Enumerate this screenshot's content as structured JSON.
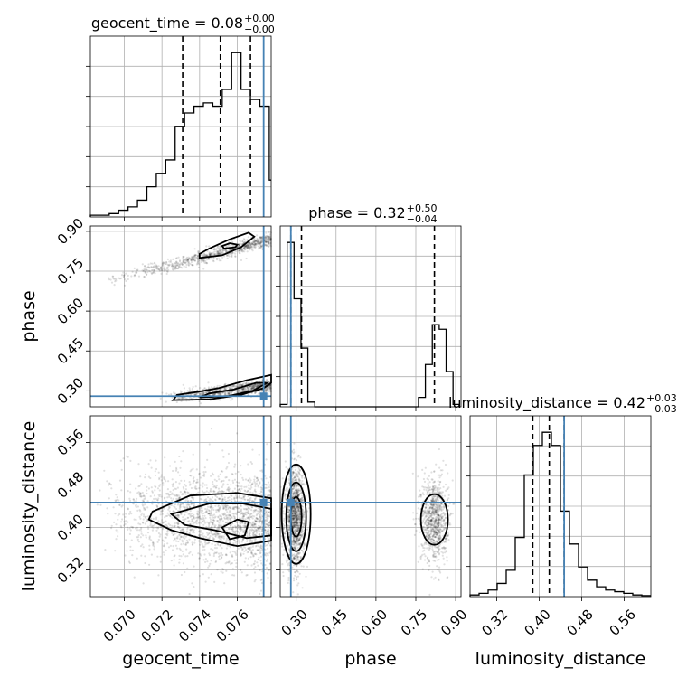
{
  "chart_data": {
    "type": "corner",
    "parameters": [
      "geocent_time",
      "phase",
      "luminosity_distance"
    ],
    "axis_labels": [
      "geocent_time",
      "phase",
      "luminosity_distance"
    ],
    "ranges": {
      "geocent_time": [
        0.0682,
        0.0778
      ],
      "phase": [
        0.24,
        0.92
      ],
      "luminosity_distance": [
        0.27,
        0.61
      ]
    },
    "ticks": {
      "geocent_time": [
        0.07,
        0.072,
        0.074,
        0.076
      ],
      "phase": [
        0.3,
        0.45,
        0.6,
        0.75,
        0.9
      ],
      "luminosity_distance": [
        0.32,
        0.4,
        0.48,
        0.56
      ]
    },
    "tick_labels": {
      "geocent_time": [
        "0.070",
        "0.072",
        "0.074",
        "0.076"
      ],
      "phase": [
        "0.30",
        "0.45",
        "0.60",
        "0.75",
        "0.90"
      ],
      "luminosity_distance": [
        "0.32",
        "0.40",
        "0.48",
        "0.56"
      ]
    },
    "truths": {
      "geocent_time": 0.0774,
      "phase": 0.28,
      "luminosity_distance": 0.447
    },
    "titles": [
      {
        "param": "geocent_time",
        "text": "geocent_time = 0.08",
        "plus": "+0.00",
        "minus": "−0.00"
      },
      {
        "param": "phase",
        "text": "phase = 0.32",
        "plus": "+0.50",
        "minus": "−0.04"
      },
      {
        "param": "luminosity_distance",
        "text": "luminosity_distance = 0.42",
        "plus": "+0.03",
        "minus": "−0.03"
      }
    ],
    "quantiles": {
      "geocent_time": [
        0.0731,
        0.0751,
        0.0767
      ],
      "phase": [
        0.28,
        0.32,
        0.82
      ],
      "luminosity_distance": [
        0.388,
        0.419,
        0.447
      ]
    },
    "histograms": {
      "geocent_time": {
        "edges": [
          0.0682,
          0.0687,
          0.0692,
          0.0697,
          0.0702,
          0.0707,
          0.0712,
          0.0717,
          0.0722,
          0.0727,
          0.0732,
          0.0737,
          0.0742,
          0.0747,
          0.0752,
          0.0757,
          0.0762,
          0.0767,
          0.0772,
          0.0777,
          0.0782
        ],
        "counts": [
          0.5,
          0.5,
          1,
          2,
          3,
          5,
          9,
          13,
          17,
          27,
          31,
          33,
          34,
          33,
          38,
          49,
          38,
          35,
          33,
          11
        ]
      },
      "phase": {
        "edges": [
          0.24,
          0.266,
          0.292,
          0.318,
          0.344,
          0.37,
          0.396,
          0.422,
          0.448,
          0.474,
          0.5,
          0.526,
          0.552,
          0.578,
          0.604,
          0.63,
          0.656,
          0.682,
          0.708,
          0.734,
          0.76,
          0.786,
          0.812,
          0.838,
          0.864,
          0.89,
          0.916
        ],
        "counts": [
          1,
          70,
          46,
          25,
          2,
          0,
          0,
          0,
          0,
          0,
          0,
          0,
          0,
          0,
          0,
          0,
          0,
          0,
          0,
          0,
          4,
          18,
          35,
          33,
          15,
          1
        ]
      },
      "luminosity_distance": {
        "edges": [
          0.27,
          0.287,
          0.304,
          0.321,
          0.338,
          0.355,
          0.372,
          0.389,
          0.406,
          0.423,
          0.44,
          0.457,
          0.474,
          0.491,
          0.508,
          0.525,
          0.542,
          0.559,
          0.576,
          0.593,
          0.61
        ],
        "counts": [
          0.5,
          1,
          2,
          4,
          8,
          18,
          37,
          46,
          50,
          46,
          26,
          16,
          9,
          5,
          3,
          2,
          1.5,
          1,
          0.5,
          0.3
        ]
      }
    },
    "panels_2d": [
      {
        "x": "geocent_time",
        "y": "phase"
      },
      {
        "x": "geocent_time",
        "y": "luminosity_distance"
      },
      {
        "x": "phase",
        "y": "luminosity_distance"
      }
    ],
    "grid": true
  }
}
